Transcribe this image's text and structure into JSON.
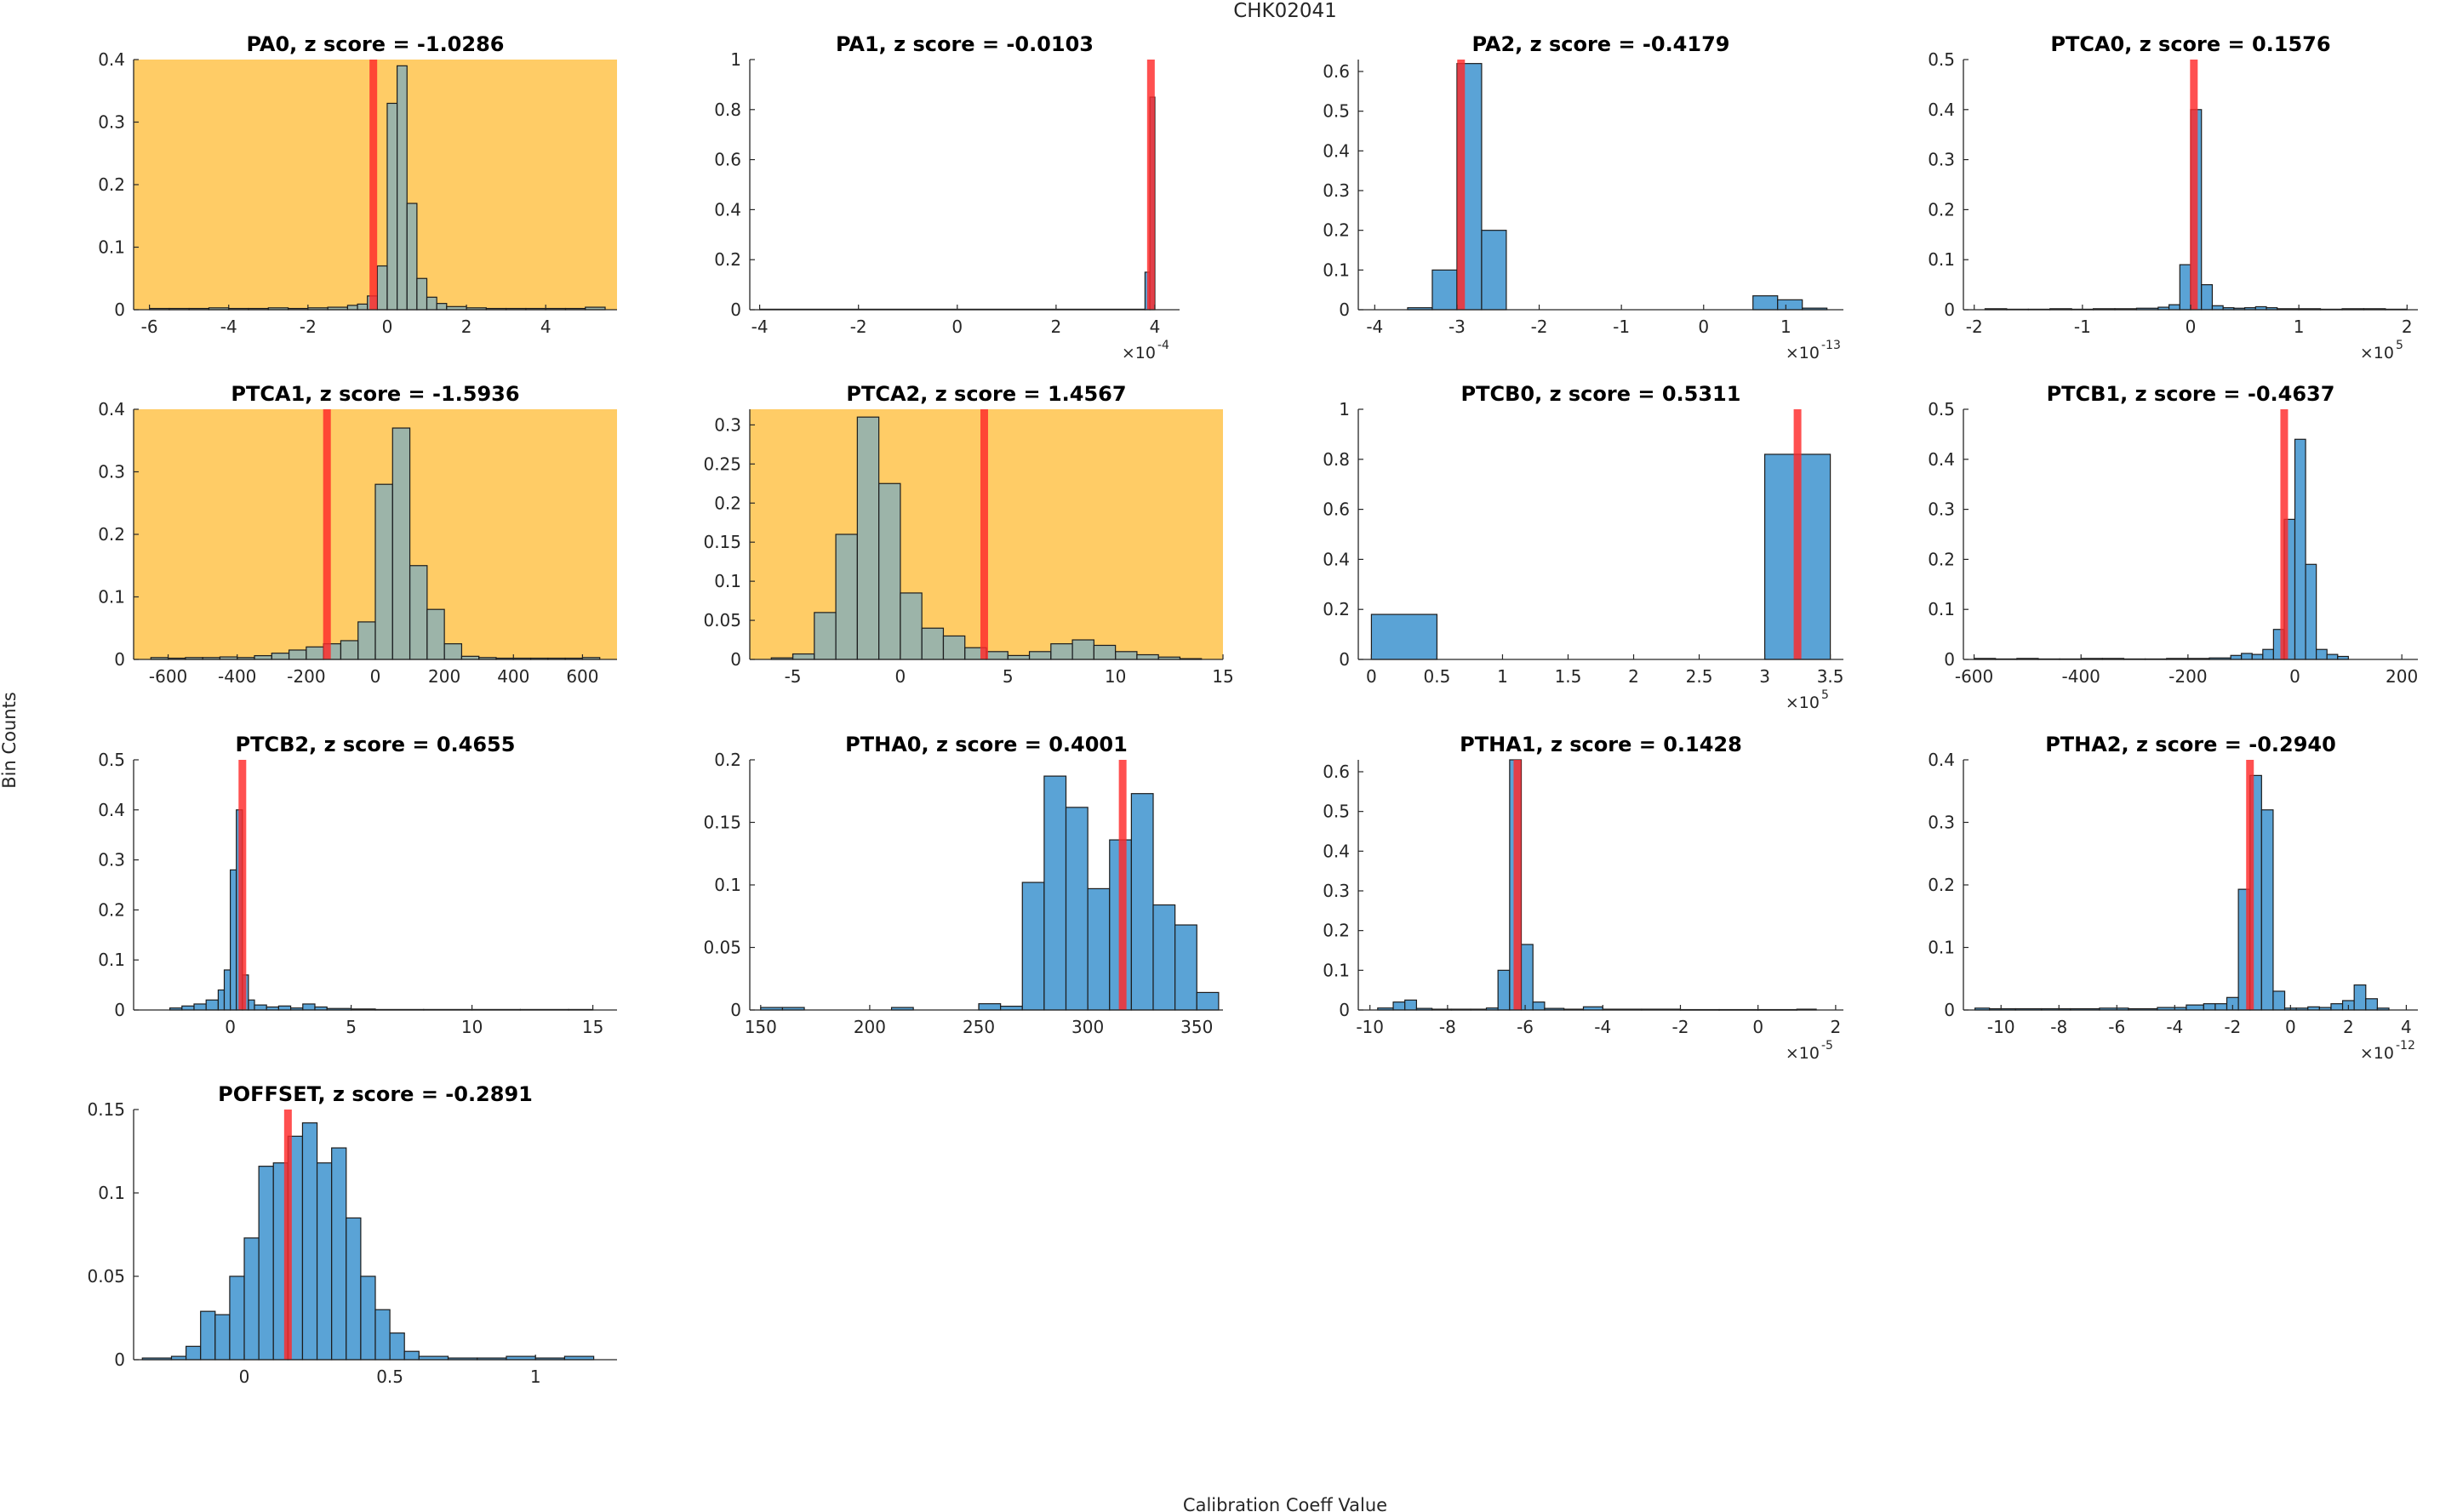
{
  "figure": {
    "title": "CHK02041",
    "xlabel": "Calibration Coeff Value",
    "ylabel": "Bin Counts"
  },
  "colors": {
    "bar_fill": "#5aa3d6",
    "bar_edge": "#1c1c1c",
    "marker": "#ff2a2a",
    "flag_background": "#ffcc66",
    "axis": "#262626"
  },
  "chart_data": [
    {
      "type": "bar",
      "name": "PA0",
      "title": "PA0, z score = -1.0286",
      "flagged": true,
      "xlim": [
        -6.4,
        5.8
      ],
      "ylim": [
        0,
        0.4
      ],
      "xticks": [
        -6,
        -4,
        -2,
        0,
        2,
        4
      ],
      "xtick_labels": [
        "-6",
        "-4",
        "-2",
        "0",
        "2",
        "4"
      ],
      "yticks": [
        0,
        0.1,
        0.2,
        0.3,
        0.4
      ],
      "ytick_labels": [
        "0",
        "0.1",
        "0.2",
        "0.3",
        "0.4"
      ],
      "multiplier": "",
      "bin_edges": [
        -6.0,
        -5.5,
        -5.0,
        -4.5,
        -4.0,
        -3.5,
        -3.0,
        -2.5,
        -2.0,
        -1.5,
        -1.0,
        -0.75,
        -0.5,
        -0.25,
        0.0,
        0.25,
        0.5,
        0.75,
        1.0,
        1.25,
        1.5,
        2.0,
        2.5,
        3.0,
        3.5,
        4.0,
        4.5,
        5.0,
        5.5
      ],
      "values": [
        0.002,
        0.002,
        0.002,
        0.003,
        0.002,
        0.002,
        0.003,
        0.002,
        0.003,
        0.004,
        0.007,
        0.009,
        0.022,
        0.07,
        0.33,
        0.39,
        0.17,
        0.05,
        0.02,
        0.01,
        0.005,
        0.003,
        0.002,
        0.002,
        0.002,
        0.002,
        0.002,
        0.004
      ],
      "marker": -0.35
    },
    {
      "type": "bar",
      "name": "PA1",
      "title": "PA1, z score = -0.0103",
      "flagged": false,
      "xlim": [
        -4.2,
        4.5
      ],
      "ylim": [
        0,
        1
      ],
      "xticks": [
        -4,
        -2,
        0,
        2,
        4
      ],
      "xtick_labels": [
        "-4",
        "-2",
        "0",
        "2",
        "4"
      ],
      "yticks": [
        0,
        0.2,
        0.4,
        0.6,
        0.8,
        1
      ],
      "ytick_labels": [
        "0",
        "0.2",
        "0.4",
        "0.6",
        "0.8",
        "1"
      ],
      "multiplier": "×10",
      "multiplier_exp": "-4",
      "bin_edges": [
        -4.0,
        3.8,
        3.9,
        4.0
      ],
      "values": [
        0.002,
        0.15,
        0.85
      ],
      "marker": 3.92
    },
    {
      "type": "bar",
      "name": "PA2",
      "title": "PA2, z score = -0.4179",
      "flagged": false,
      "xlim": [
        -4.2,
        1.7
      ],
      "ylim": [
        0,
        0.63
      ],
      "xticks": [
        -4,
        -3,
        -2,
        -1,
        0,
        1
      ],
      "xtick_labels": [
        "-4",
        "-3",
        "-2",
        "-1",
        "0",
        "1"
      ],
      "yticks": [
        0,
        0.1,
        0.2,
        0.3,
        0.4,
        0.5,
        0.6
      ],
      "ytick_labels": [
        "0",
        "0.1",
        "0.2",
        "0.3",
        "0.4",
        "0.5",
        "0.6"
      ],
      "multiplier": "×10",
      "multiplier_exp": "-13",
      "bin_edges": [
        -3.6,
        -3.3,
        -3.0,
        -2.7,
        -2.4,
        -2.1,
        -1.8,
        -1.5,
        -1.2,
        -0.9,
        -0.6,
        -0.3,
        0.0,
        0.3,
        0.6,
        0.9,
        1.2,
        1.5
      ],
      "values": [
        0.005,
        0.1,
        0.62,
        0.2,
        0.0,
        0.0,
        0.0,
        0.0,
        0.0,
        0.0,
        0.0,
        0.0,
        0.0,
        0.0,
        0.035,
        0.025,
        0.004
      ],
      "marker": -2.95
    },
    {
      "type": "bar",
      "name": "PTCA0",
      "title": "PTCA0, z score = 0.1576",
      "flagged": false,
      "xlim": [
        -2.1,
        2.1
      ],
      "ylim": [
        0,
        0.5
      ],
      "xticks": [
        -2,
        -1,
        0,
        1,
        2
      ],
      "xtick_labels": [
        "-2",
        "-1",
        "0",
        "1",
        "2"
      ],
      "yticks": [
        0,
        0.1,
        0.2,
        0.3,
        0.4,
        0.5
      ],
      "ytick_labels": [
        "0",
        "0.1",
        "0.2",
        "0.3",
        "0.4",
        "0.5"
      ],
      "multiplier": "×10",
      "multiplier_exp": "5",
      "bin_edges": [
        -1.9,
        -1.7,
        -1.5,
        -1.3,
        -1.1,
        -0.9,
        -0.7,
        -0.5,
        -0.3,
        -0.2,
        -0.1,
        0.0,
        0.1,
        0.2,
        0.3,
        0.4,
        0.5,
        0.6,
        0.7,
        0.8,
        1.0,
        1.2,
        1.4,
        1.6,
        1.8,
        2.0
      ],
      "values": [
        0.002,
        0.001,
        0.001,
        0.002,
        0.001,
        0.002,
        0.002,
        0.003,
        0.005,
        0.01,
        0.09,
        0.4,
        0.05,
        0.008,
        0.004,
        0.003,
        0.004,
        0.006,
        0.004,
        0.002,
        0.002,
        0.001,
        0.002,
        0.002,
        0.001
      ],
      "marker": 0.03
    },
    {
      "type": "bar",
      "name": "PTCA1",
      "title": "PTCA1, z score = -1.5936",
      "flagged": true,
      "xlim": [
        -700,
        700
      ],
      "ylim": [
        0,
        0.4
      ],
      "xticks": [
        -600,
        -400,
        -200,
        0,
        200,
        400,
        600
      ],
      "xtick_labels": [
        "-600",
        "-400",
        "-200",
        "0",
        "200",
        "400",
        "600"
      ],
      "yticks": [
        0,
        0.1,
        0.2,
        0.3,
        0.4
      ],
      "ytick_labels": [
        "0",
        "0.1",
        "0.2",
        "0.3",
        "0.4"
      ],
      "multiplier": "",
      "bin_edges": [
        -650,
        -600,
        -550,
        -500,
        -450,
        -400,
        -350,
        -300,
        -250,
        -200,
        -150,
        -100,
        -50,
        0,
        50,
        100,
        150,
        200,
        250,
        300,
        350,
        400,
        450,
        500,
        550,
        600,
        650
      ],
      "values": [
        0.003,
        0.002,
        0.003,
        0.003,
        0.004,
        0.003,
        0.006,
        0.01,
        0.015,
        0.02,
        0.025,
        0.03,
        0.06,
        0.28,
        0.37,
        0.15,
        0.08,
        0.025,
        0.005,
        0.003,
        0.002,
        0.002,
        0.002,
        0.002,
        0.002,
        0.003
      ],
      "marker": -140
    },
    {
      "type": "bar",
      "name": "PTCA2",
      "title": "PTCA2, z score = 1.4567",
      "flagged": true,
      "xlim": [
        -7,
        15
      ],
      "ylim": [
        0,
        0.32
      ],
      "xticks": [
        -5,
        0,
        5,
        10,
        15
      ],
      "xtick_labels": [
        "-5",
        "0",
        "5",
        "10",
        "15"
      ],
      "yticks": [
        0,
        0.05,
        0.1,
        0.15,
        0.2,
        0.25,
        0.3
      ],
      "ytick_labels": [
        "0",
        "0.05",
        "0.1",
        "0.15",
        "0.2",
        "0.25",
        "0.3"
      ],
      "multiplier": "",
      "bin_edges": [
        -6,
        -5,
        -4,
        -3,
        -2,
        -1,
        0,
        1,
        2,
        3,
        4,
        5,
        6,
        7,
        8,
        9,
        10,
        11,
        12,
        13,
        14
      ],
      "values": [
        0.002,
        0.007,
        0.06,
        0.16,
        0.31,
        0.225,
        0.085,
        0.04,
        0.03,
        0.015,
        0.01,
        0.005,
        0.01,
        0.02,
        0.025,
        0.018,
        0.01,
        0.006,
        0.003,
        0.001
      ],
      "marker": 3.9
    },
    {
      "type": "bar",
      "name": "PTCB0",
      "title": "PTCB0, z score = 0.5311",
      "flagged": false,
      "xlim": [
        -0.1,
        3.6
      ],
      "ylim": [
        0,
        1
      ],
      "xticks": [
        0,
        0.5,
        1,
        1.5,
        2,
        2.5,
        3,
        3.5
      ],
      "xtick_labels": [
        "0",
        "0.5",
        "1",
        "1.5",
        "2",
        "2.5",
        "3",
        "3.5"
      ],
      "yticks": [
        0,
        0.2,
        0.4,
        0.6,
        0.8,
        1
      ],
      "ytick_labels": [
        "0",
        "0.2",
        "0.4",
        "0.6",
        "0.8",
        "1"
      ],
      "multiplier": "×10",
      "multiplier_exp": "5",
      "bin_edges": [
        0.0,
        0.5,
        3.0,
        3.5
      ],
      "values": [
        0.18,
        0.0,
        0.82
      ],
      "marker": 3.25
    },
    {
      "type": "bar",
      "name": "PTCB1",
      "title": "PTCB1, z score = -0.4637",
      "flagged": false,
      "xlim": [
        -620,
        230
      ],
      "ylim": [
        0,
        0.5
      ],
      "xticks": [
        -600,
        -400,
        -200,
        0,
        200
      ],
      "xtick_labels": [
        "-600",
        "-400",
        "-200",
        "0",
        "200"
      ],
      "yticks": [
        0,
        0.1,
        0.2,
        0.3,
        0.4,
        0.5
      ],
      "ytick_labels": [
        "0",
        "0.1",
        "0.2",
        "0.3",
        "0.4",
        "0.5"
      ],
      "multiplier": "",
      "bin_edges": [
        -600,
        -560,
        -520,
        -480,
        -440,
        -400,
        -360,
        -320,
        -280,
        -240,
        -200,
        -160,
        -120,
        -100,
        -80,
        -60,
        -40,
        -20,
        0,
        20,
        40,
        60,
        80,
        100
      ],
      "values": [
        0.002,
        0.001,
        0.002,
        0.001,
        0.001,
        0.002,
        0.002,
        0.001,
        0.001,
        0.002,
        0.002,
        0.003,
        0.008,
        0.012,
        0.01,
        0.02,
        0.06,
        0.28,
        0.44,
        0.19,
        0.02,
        0.01,
        0.006
      ],
      "marker": -20
    },
    {
      "type": "bar",
      "name": "PTCB2",
      "title": "PTCB2, z score = 0.4655",
      "flagged": false,
      "xlim": [
        -4,
        16
      ],
      "ylim": [
        0,
        0.5
      ],
      "xticks": [
        0,
        5,
        10,
        15
      ],
      "xtick_labels": [
        "0",
        "5",
        "10",
        "15"
      ],
      "yticks": [
        0,
        0.1,
        0.2,
        0.3,
        0.4,
        0.5
      ],
      "ytick_labels": [
        "0",
        "0.1",
        "0.2",
        "0.3",
        "0.4",
        "0.5"
      ],
      "multiplier": "",
      "bin_edges": [
        -2.5,
        -2.0,
        -1.5,
        -1.0,
        -0.5,
        -0.25,
        0.0,
        0.25,
        0.5,
        0.75,
        1.0,
        1.5,
        2.0,
        2.5,
        3.0,
        3.5,
        4.0,
        5.0,
        6.0,
        8.0,
        10.0,
        12.0,
        14.0,
        15.0
      ],
      "values": [
        0.004,
        0.008,
        0.012,
        0.02,
        0.04,
        0.08,
        0.28,
        0.4,
        0.07,
        0.02,
        0.01,
        0.006,
        0.008,
        0.004,
        0.012,
        0.006,
        0.003,
        0.002,
        0.001,
        0.001,
        0.001,
        0.001,
        0.001
      ],
      "marker": 0.5
    },
    {
      "type": "bar",
      "name": "PTHA0",
      "title": "PTHA0, z score = 0.4001",
      "flagged": false,
      "xlim": [
        145,
        362
      ],
      "ylim": [
        0,
        0.2
      ],
      "xticks": [
        150,
        200,
        250,
        300,
        350
      ],
      "xtick_labels": [
        "150",
        "200",
        "250",
        "300",
        "350"
      ],
      "yticks": [
        0,
        0.05,
        0.1,
        0.15,
        0.2
      ],
      "ytick_labels": [
        "0",
        "0.05",
        "0.1",
        "0.15",
        "0.2"
      ],
      "multiplier": "",
      "bin_edges": [
        150,
        160,
        170,
        180,
        190,
        200,
        210,
        220,
        230,
        240,
        250,
        260,
        270,
        280,
        290,
        300,
        310,
        320,
        330,
        340,
        350,
        360
      ],
      "values": [
        0.002,
        0.002,
        0.0,
        0.0,
        0.0,
        0.0,
        0.002,
        0.0,
        0.0,
        0.0,
        0.005,
        0.003,
        0.102,
        0.187,
        0.162,
        0.097,
        0.136,
        0.173,
        0.084,
        0.068,
        0.014
      ],
      "marker": 316
    },
    {
      "type": "bar",
      "name": "PTHA1",
      "title": "PTHA1, z score = 0.1428",
      "flagged": false,
      "xlim": [
        -10.3,
        2.2
      ],
      "ylim": [
        0,
        0.63
      ],
      "xticks": [
        -10,
        -8,
        -6,
        -4,
        -2,
        0,
        2
      ],
      "xtick_labels": [
        "-10",
        "-8",
        "-6",
        "-4",
        "-2",
        "0",
        "2"
      ],
      "yticks": [
        0,
        0.1,
        0.2,
        0.3,
        0.4,
        0.5,
        0.6
      ],
      "ytick_labels": [
        "0",
        "0.1",
        "0.2",
        "0.3",
        "0.4",
        "0.5",
        "0.6"
      ],
      "multiplier": "×10",
      "multiplier_exp": "-5",
      "bin_edges": [
        -9.8,
        -9.4,
        -9.1,
        -8.8,
        -8.4,
        -7.9,
        -7.4,
        -7.0,
        -6.7,
        -6.4,
        -6.1,
        -5.8,
        -5.5,
        -5.0,
        -4.5,
        -4.0,
        -3.0,
        -2.0,
        -1.0,
        0.0,
        1.0,
        1.5
      ],
      "values": [
        0.005,
        0.02,
        0.025,
        0.004,
        0.002,
        0.002,
        0.002,
        0.005,
        0.1,
        0.63,
        0.165,
        0.02,
        0.004,
        0.002,
        0.008,
        0.002,
        0.002,
        0.001,
        0.001,
        0.001,
        0.002
      ],
      "marker": -6.2
    },
    {
      "type": "bar",
      "name": "PTHA2",
      "title": "PTHA2, z score = -0.2940",
      "flagged": false,
      "xlim": [
        -11.3,
        4.4
      ],
      "ylim": [
        0,
        0.4
      ],
      "xticks": [
        -10,
        -8,
        -6,
        -4,
        -2,
        0,
        2,
        4
      ],
      "xtick_labels": [
        "-10",
        "-8",
        "-6",
        "-4",
        "-2",
        "0",
        "2",
        "4"
      ],
      "yticks": [
        0,
        0.1,
        0.2,
        0.3,
        0.4
      ],
      "ytick_labels": [
        "0",
        "0.1",
        "0.2",
        "0.3",
        "0.4"
      ],
      "multiplier": "×10",
      "multiplier_exp": "-12",
      "bin_edges": [
        -10.9,
        -10.4,
        -9.5,
        -8.6,
        -7.6,
        -6.6,
        -5.6,
        -4.6,
        -3.6,
        -3.0,
        -2.6,
        -2.2,
        -1.8,
        -1.4,
        -1.0,
        -0.6,
        -0.2,
        0.2,
        0.6,
        1.0,
        1.4,
        1.8,
        2.2,
        2.6,
        3.0,
        3.4
      ],
      "values": [
        0.003,
        0.002,
        0.002,
        0.002,
        0.002,
        0.003,
        0.002,
        0.004,
        0.008,
        0.01,
        0.01,
        0.02,
        0.193,
        0.375,
        0.32,
        0.03,
        0.003,
        0.003,
        0.005,
        0.004,
        0.01,
        0.015,
        0.04,
        0.018,
        0.003
      ],
      "marker": -1.4
    },
    {
      "type": "bar",
      "name": "POFFSET",
      "title": "POFFSET, z score = -0.2891",
      "flagged": false,
      "xlim": [
        -0.38,
        1.28
      ],
      "ylim": [
        0,
        0.15
      ],
      "xticks": [
        0,
        0.5,
        1
      ],
      "xtick_labels": [
        "0",
        "0.5",
        "1"
      ],
      "yticks": [
        0,
        0.05,
        0.1,
        0.15
      ],
      "ytick_labels": [
        "0",
        "0.05",
        "0.1",
        "0.15"
      ],
      "multiplier": "",
      "bin_edges": [
        -0.35,
        -0.25,
        -0.2,
        -0.15,
        -0.1,
        -0.05,
        0.0,
        0.05,
        0.1,
        0.15,
        0.2,
        0.25,
        0.3,
        0.35,
        0.4,
        0.45,
        0.5,
        0.55,
        0.6,
        0.7,
        0.8,
        0.9,
        1.0,
        1.1,
        1.2
      ],
      "values": [
        0.001,
        0.002,
        0.008,
        0.029,
        0.027,
        0.05,
        0.073,
        0.116,
        0.118,
        0.134,
        0.142,
        0.118,
        0.127,
        0.085,
        0.05,
        0.03,
        0.016,
        0.005,
        0.002,
        0.001,
        0.001,
        0.002,
        0.001,
        0.002
      ],
      "marker": 0.15
    }
  ]
}
